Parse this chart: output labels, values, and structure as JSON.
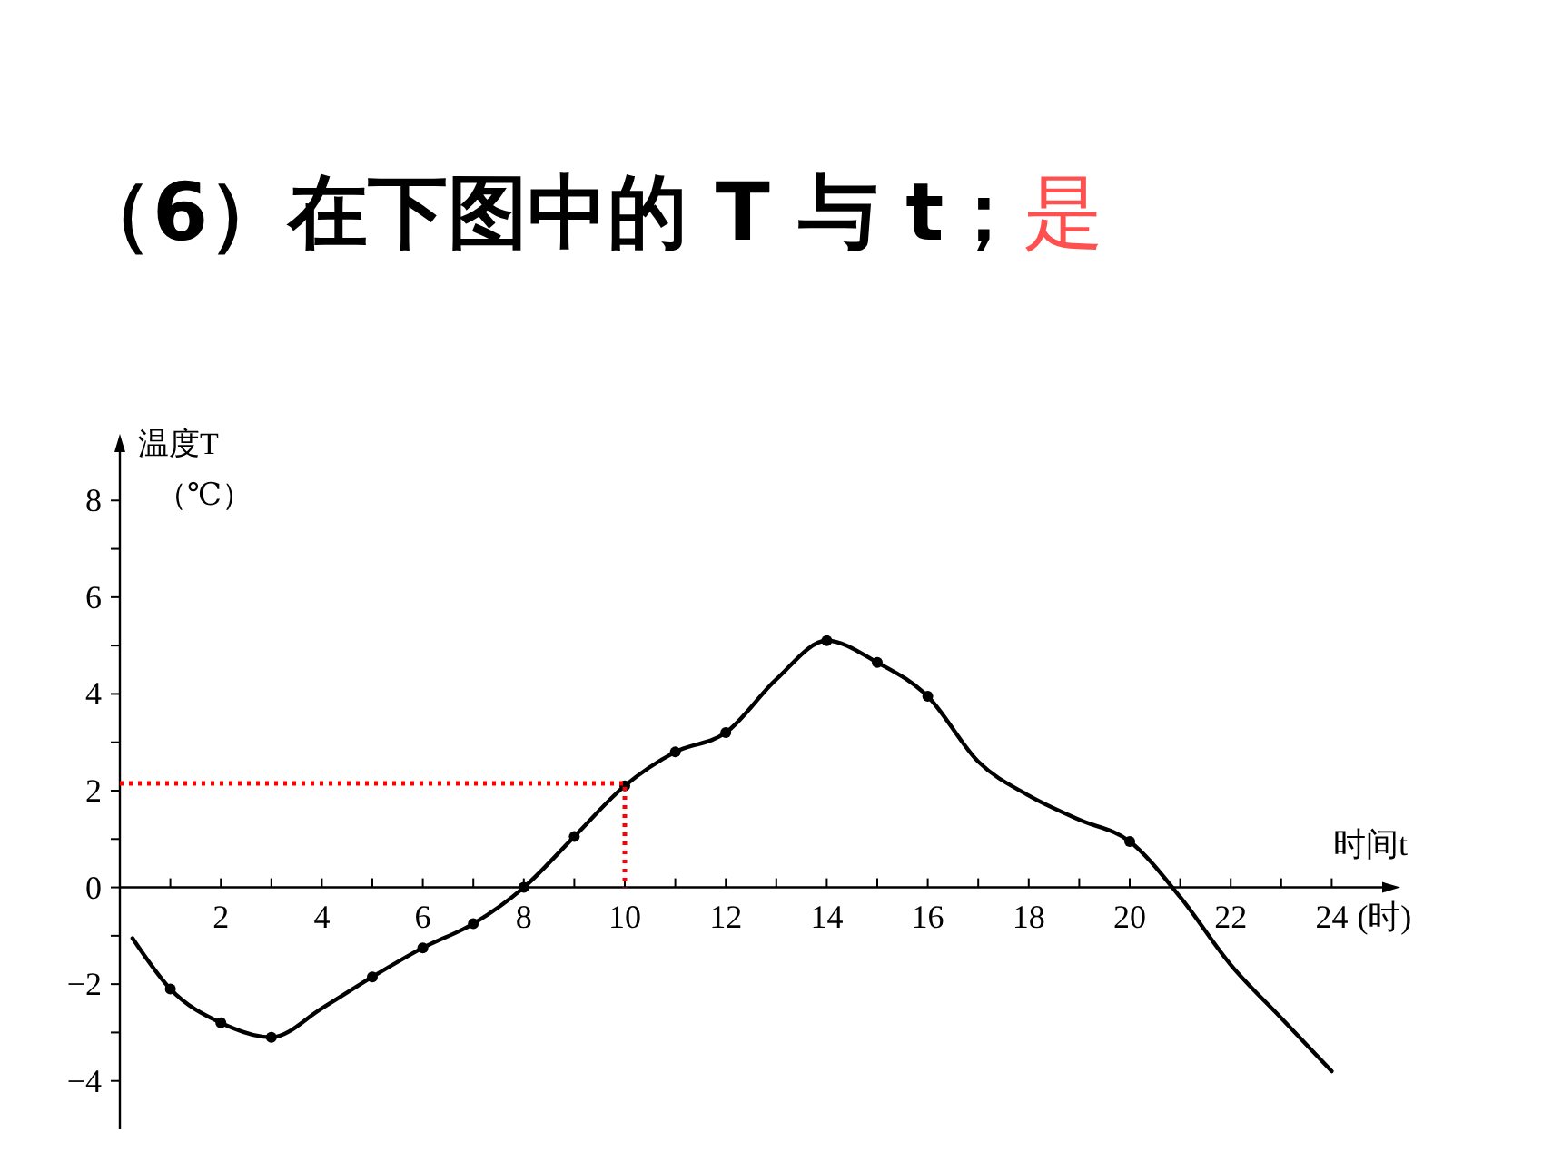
{
  "chart_data": {
    "type": "line",
    "title": "（6）在下图中的 T 与 t；",
    "xlabel": "时间t",
    "ylabel": "温度T（℃）",
    "annotations": [
      "是",
      "(时)"
    ],
    "xlim": [
      0,
      25
    ],
    "ylim": [
      -5,
      9
    ],
    "xticks": [
      {
        "value": 1,
        "label": null
      },
      2,
      {
        "value": 3,
        "label": null
      },
      4,
      {
        "value": 5,
        "label": null
      },
      6,
      {
        "value": 7,
        "label": null
      },
      8,
      {
        "value": 9,
        "label": null
      },
      10,
      {
        "value": 11,
        "label": null
      },
      12,
      {
        "value": 13,
        "label": null
      },
      14,
      {
        "value": 15,
        "label": null
      },
      16,
      {
        "value": 17,
        "label": null
      },
      18,
      {
        "value": 19,
        "label": null
      },
      20,
      {
        "value": 21,
        "label": null
      },
      22,
      {
        "value": 23,
        "label": null
      },
      24
    ],
    "yticks": [
      -4,
      {
        "value": -3,
        "label": null
      },
      -2,
      {
        "value": -1,
        "label": null
      },
      0,
      {
        "value": 1,
        "label": null
      },
      2,
      {
        "value": 3,
        "label": null
      },
      4,
      {
        "value": 5,
        "label": null
      },
      6,
      {
        "value": 7,
        "label": null
      },
      8
    ],
    "grid": false,
    "series": [
      {
        "color": "#000000",
        "marker": "none",
        "line_style": "solid",
        "x": [
          0.25,
          1,
          2,
          3,
          4,
          5,
          6,
          7,
          8,
          9,
          10,
          11,
          12,
          13,
          14,
          15,
          16,
          17,
          18,
          19,
          20,
          21,
          22,
          23,
          24
        ],
        "values": [
          -1.05,
          -2.1,
          -2.8,
          -3.1,
          -2.5,
          -1.85,
          -1.25,
          -0.75,
          0,
          1.05,
          2.1,
          2.8,
          3.2,
          4.3,
          5.1,
          4.65,
          3.95,
          2.6,
          1.9,
          1.4,
          0.95,
          -0.2,
          -1.6,
          -2.7,
          -3.8
        ]
      },
      {
        "type": "scatter",
        "color": "#000000",
        "marker": "circle",
        "x": [
          1,
          2,
          3,
          5,
          6,
          7,
          8,
          9,
          10,
          11,
          12,
          14,
          15,
          16,
          20
        ],
        "values": [
          -2.1,
          -2.8,
          -3.1,
          -1.85,
          -1.25,
          -0.75,
          0,
          1.05,
          2.1,
          2.8,
          3.2,
          5.1,
          4.65,
          3.95,
          0.95
        ]
      },
      {
        "type": "line",
        "color": "#ff0000",
        "marker": "none",
        "line_style": "dotted",
        "x": [
          0,
          10,
          10
        ],
        "values": [
          2.15,
          2.15,
          0
        ]
      }
    ]
  }
}
